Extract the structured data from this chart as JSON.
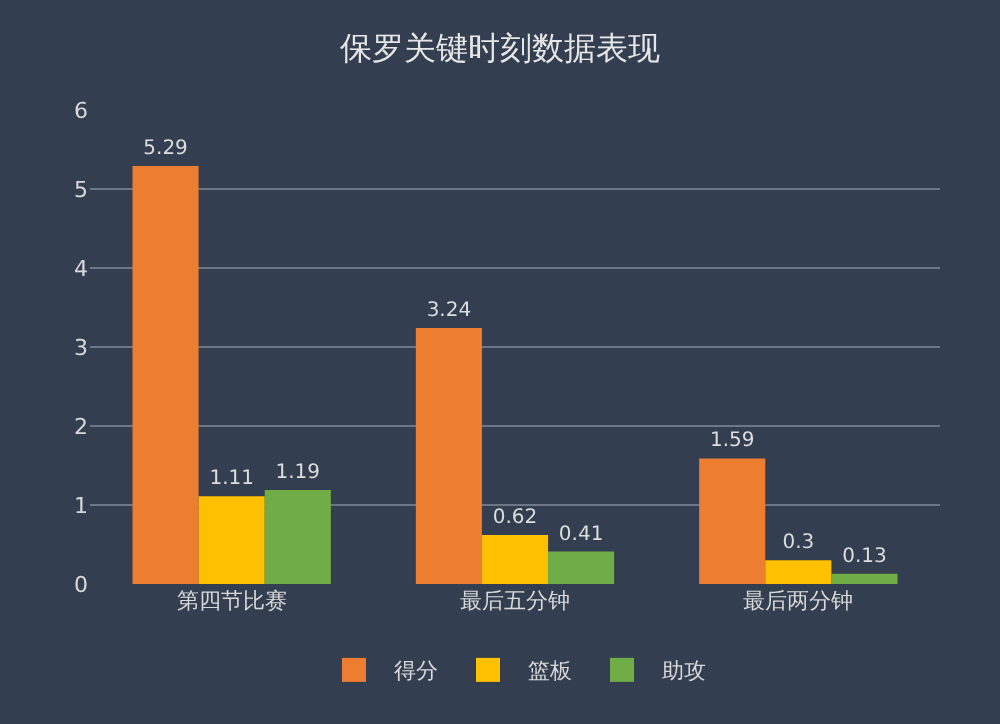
{
  "chart_data": {
    "type": "bar",
    "title": "保罗关键时刻数据表现",
    "categories": [
      "第四节比赛",
      "最后五分钟",
      "最后两分钟"
    ],
    "series": [
      {
        "name": "得分",
        "color": "#ed7d31",
        "values": [
          5.29,
          3.24,
          1.59
        ]
      },
      {
        "name": "篮板",
        "color": "#ffc000",
        "values": [
          1.11,
          0.62,
          0.3
        ]
      },
      {
        "name": "助攻",
        "color": "#70ad47",
        "values": [
          1.19,
          0.41,
          0.13
        ]
      }
    ],
    "ylim": [
      0,
      6
    ],
    "yticks": [
      0,
      1,
      2,
      3,
      4,
      5,
      6
    ],
    "grid": "y",
    "legend": "bottom",
    "data_labels": true
  }
}
